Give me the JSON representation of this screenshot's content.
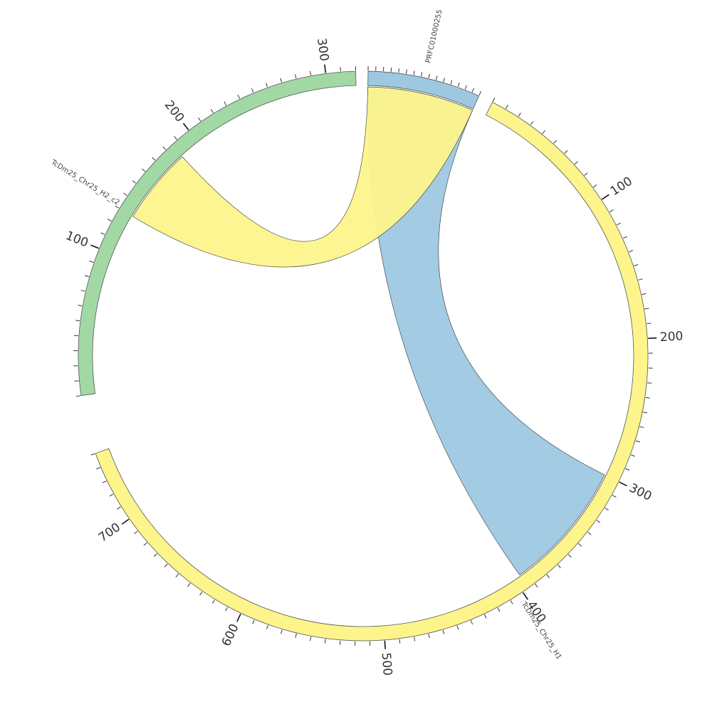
{
  "chart_data": {
    "type": "chord",
    "segments": [
      {
        "id": "PRFC01000255",
        "name": "PRFC01000255",
        "color": "#9ec8e2",
        "start": 0,
        "end": 75,
        "tick_step": 5,
        "major_tick_step": 100,
        "start_angle_deg": 1,
        "end_angle_deg": 24
      },
      {
        "id": "TcDm25_Chr25_H1",
        "name": "TcDm25_Chr25_H1",
        "color": "#fdf48b",
        "start": 0,
        "end": 750,
        "tick_step": 10,
        "major_tick_step": 100,
        "start_angle_deg": 27,
        "end_angle_deg": 250
      },
      {
        "id": "TcDm25_Chr25_H2_c2",
        "name": "TcDm25_Chr25_H2_c2",
        "color": "#a2d8a4",
        "start": 0,
        "end": 320,
        "tick_step": 10,
        "major_tick_step": 100,
        "start_angle_deg": 262,
        "end_angle_deg": 358.5
      }
    ],
    "links": [
      {
        "color": "#9ec8e2",
        "source": {
          "segment": "PRFC01000255",
          "start": 0,
          "end": 75
        },
        "target": {
          "segment": "TcDm25_Chr25_H1",
          "start": 300,
          "end": 395
        }
      },
      {
        "color": "#fdf48b",
        "source": {
          "segment": "TcDm25_Chr25_H2_c2",
          "start": 130,
          "end": 185
        },
        "target": {
          "segment": "PRFC01000255",
          "start": 0,
          "end": 75
        }
      }
    ]
  }
}
